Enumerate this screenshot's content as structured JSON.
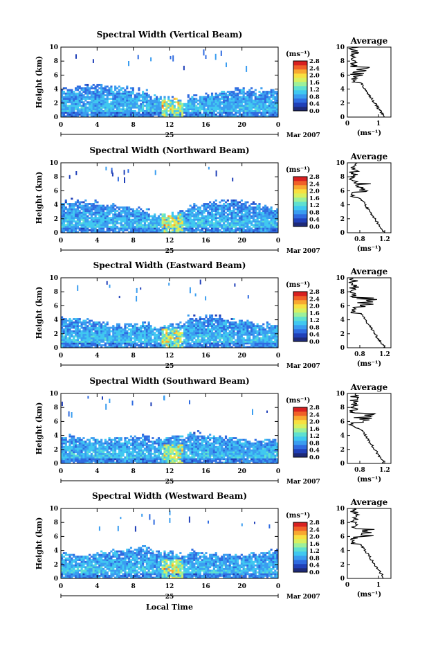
{
  "chart_data": [
    {
      "type": "heatmap",
      "title": "Spectral Width (Vertical Beam)",
      "ylabel": "Height (km)",
      "ylim": [
        0,
        10
      ],
      "yticks": [
        "0",
        "2",
        "4",
        "6",
        "8",
        "10"
      ],
      "xlim": [
        0,
        24
      ],
      "xticks": [
        "0",
        "4",
        "8",
        "12",
        "16",
        "20",
        "0"
      ],
      "date_label": "25",
      "month_label": "Mar 2007",
      "colorbar": {
        "unit": "(ms⁻¹)",
        "ticks": [
          "0.0",
          "0.4",
          "0.8",
          "1.2",
          "1.6",
          "2.0",
          "2.4",
          "2.8"
        ]
      },
      "profile": {
        "title": "Average",
        "xlabel": "(ms⁻¹)",
        "xticks": [
          "0",
          "1"
        ],
        "xlim": [
          0,
          1.4
        ],
        "profile_kind": 0
      }
    },
    {
      "type": "heatmap",
      "title": "Spectral Width (Northward Beam)",
      "ylabel": "Height (km)",
      "ylim": [
        0,
        10
      ],
      "yticks": [
        "0",
        "2",
        "4",
        "6",
        "8",
        "10"
      ],
      "xlim": [
        0,
        24
      ],
      "xticks": [
        "0",
        "4",
        "8",
        "12",
        "16",
        "20",
        "0"
      ],
      "date_label": "25",
      "month_label": "Mar 2007",
      "colorbar": {
        "unit": "(ms⁻¹)",
        "ticks": [
          "0.0",
          "0.4",
          "0.8",
          "1.2",
          "1.6",
          "2.0",
          "2.4",
          "2.8"
        ]
      },
      "profile": {
        "title": "Average",
        "xlabel": "(ms⁻¹)",
        "xticks": [
          "0.8",
          "1.2"
        ],
        "xlim": [
          0.6,
          1.3
        ],
        "profile_kind": 1
      }
    },
    {
      "type": "heatmap",
      "title": "Spectral Width (Eastward Beam)",
      "ylabel": "Height (km)",
      "ylim": [
        0,
        10
      ],
      "yticks": [
        "0",
        "2",
        "4",
        "6",
        "8",
        "10"
      ],
      "xlim": [
        0,
        24
      ],
      "xticks": [
        "0",
        "4",
        "8",
        "12",
        "16",
        "20",
        "0"
      ],
      "date_label": "25",
      "month_label": "Mar 2007",
      "colorbar": {
        "unit": "(ms⁻¹)",
        "ticks": [
          "0.0",
          "0.4",
          "0.8",
          "1.2",
          "1.6",
          "2.0",
          "2.4",
          "2.8"
        ]
      },
      "profile": {
        "title": "Average",
        "xlabel": "(ms⁻¹)",
        "xticks": [
          "0.8",
          "1.2"
        ],
        "xlim": [
          0.6,
          1.3
        ],
        "profile_kind": 2
      }
    },
    {
      "type": "heatmap",
      "title": "Spectral Width (Southward Beam)",
      "ylabel": "Height (km)",
      "ylim": [
        0,
        10
      ],
      "yticks": [
        "0",
        "2",
        "4",
        "6",
        "8",
        "10"
      ],
      "xlim": [
        0,
        24
      ],
      "xticks": [
        "0",
        "4",
        "8",
        "12",
        "16",
        "20",
        "0"
      ],
      "date_label": "25",
      "month_label": "Mar 2007",
      "colorbar": {
        "unit": "(ms⁻¹)",
        "ticks": [
          "0.0",
          "0.4",
          "0.8",
          "1.2",
          "1.6",
          "2.0",
          "2.4",
          "2.8"
        ]
      },
      "profile": {
        "title": "Average",
        "xlabel": "(ms⁻¹)",
        "xticks": [
          "0.8",
          "1.2"
        ],
        "xlim": [
          0.6,
          1.3
        ],
        "profile_kind": 3
      }
    },
    {
      "type": "heatmap",
      "title": "Spectral Width (Westward Beam)",
      "ylabel": "Height (km)",
      "ylim": [
        0,
        10
      ],
      "yticks": [
        "0",
        "2",
        "4",
        "6",
        "8",
        "10"
      ],
      "xlim": [
        0,
        24
      ],
      "xticks": [
        "0",
        "4",
        "8",
        "12",
        "16",
        "20",
        "0"
      ],
      "date_label": "25",
      "month_label": "Mar 2007",
      "colorbar": {
        "unit": "(ms⁻¹)",
        "ticks": [
          "0.0",
          "0.4",
          "0.8",
          "1.2",
          "1.6",
          "2.0",
          "2.4",
          "2.8"
        ]
      },
      "profile": {
        "title": "Average",
        "xlabel": "(ms⁻¹)",
        "xticks": [
          "0",
          "1"
        ],
        "xlim": [
          0,
          1.4
        ],
        "profile_kind": 4
      }
    }
  ],
  "xlabel": "Local Time",
  "colormap": [
    "#1e2a78",
    "#2040b8",
    "#2f6be0",
    "#3a9df0",
    "#40c8f0",
    "#5fe0d0",
    "#9df09a",
    "#d8f060",
    "#f8e040",
    "#f8a830",
    "#f06028",
    "#d82020"
  ]
}
